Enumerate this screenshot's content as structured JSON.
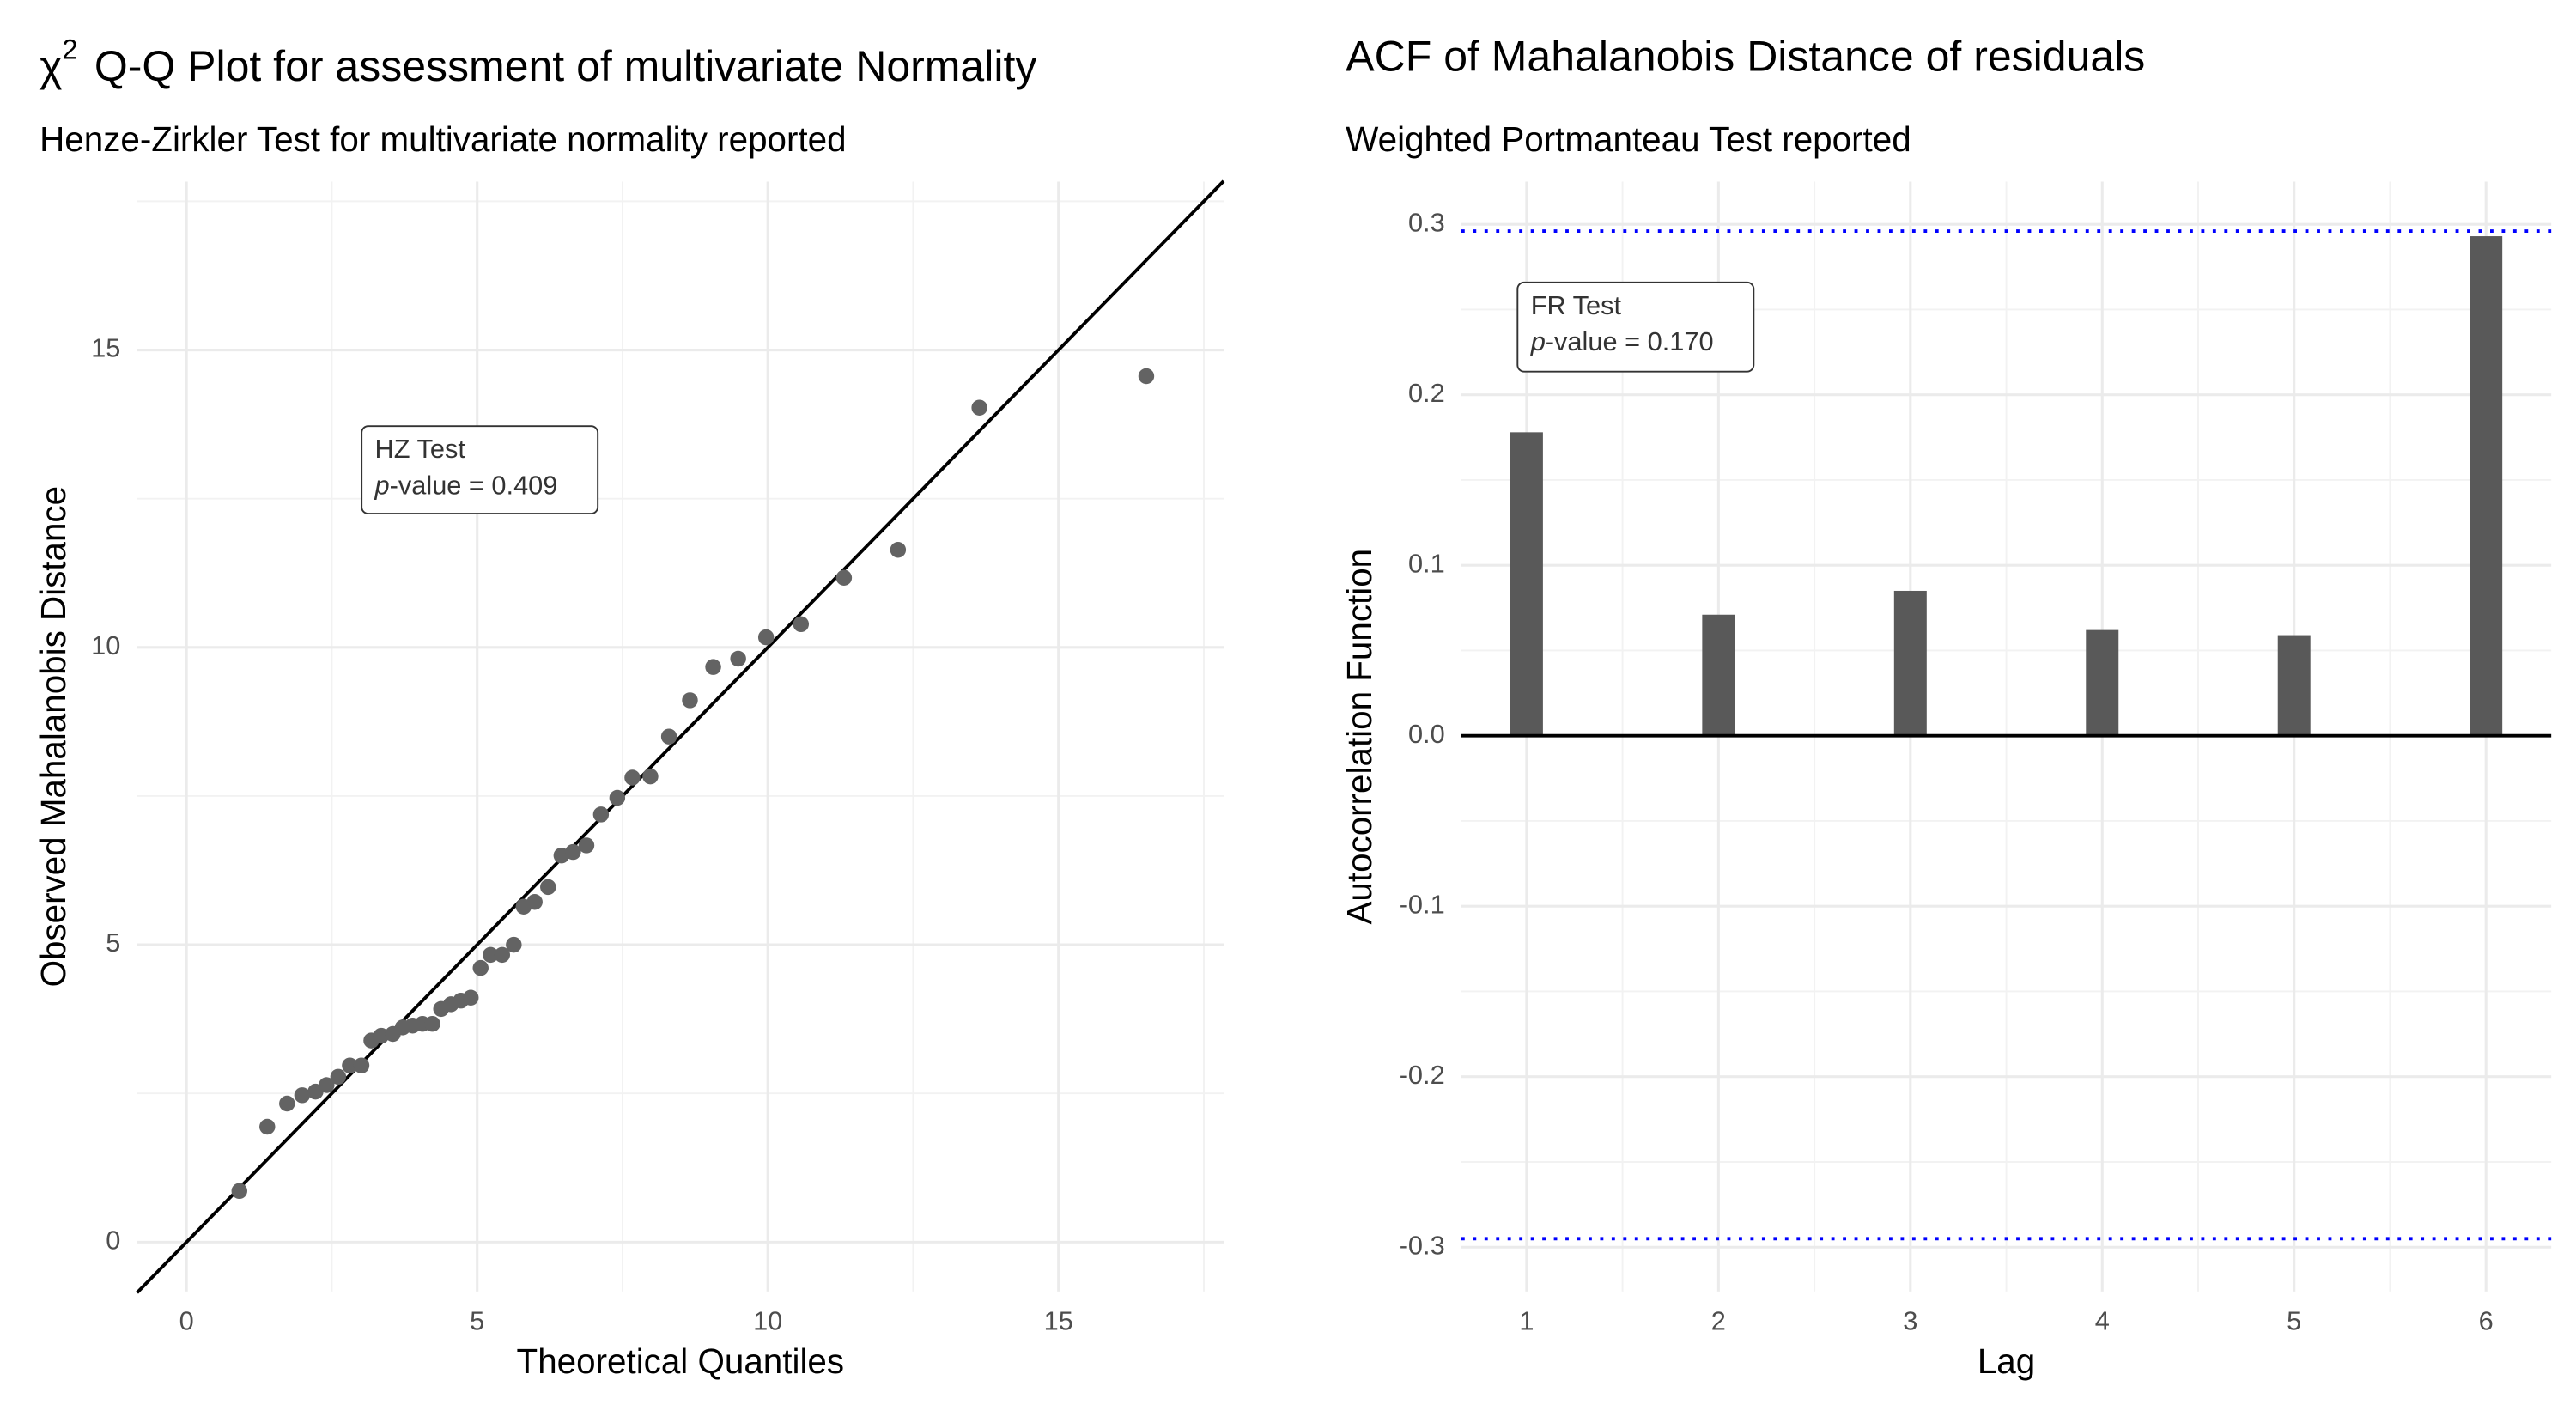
{
  "chart_data": [
    {
      "type": "scatter",
      "title_symbol": "χ",
      "title_superscript": "2",
      "title": "Q-Q Plot for assessment of multivariate Normality",
      "subtitle": "Henze-Zirkler Test for multivariate normality reported",
      "x_label": "Theoretical Quantiles",
      "y_label": "Observed Mahalanobis Distance",
      "annotation": {
        "title": "HZ Test",
        "stat_symbol": "p",
        "stat_text": "-value = 0.409"
      },
      "x": [
        0.91,
        1.39,
        1.73,
        1.99,
        2.22,
        2.41,
        2.61,
        2.81,
        3.01,
        3.18,
        3.35,
        3.55,
        3.72,
        3.89,
        4.06,
        4.23,
        4.38,
        4.55,
        4.72,
        4.89,
        5.06,
        5.23,
        5.43,
        5.63,
        5.8,
        5.99,
        6.22,
        6.45,
        6.65,
        6.88,
        7.13,
        7.41,
        7.67,
        7.98,
        8.3,
        8.66,
        9.06,
        9.49,
        9.97,
        10.57,
        11.31,
        12.24,
        13.64,
        16.51
      ],
      "series": [
        {
          "name": "Observed",
          "color": "#636363",
          "values": [
            0.86,
            1.94,
            2.33,
            2.47,
            2.53,
            2.64,
            2.78,
            2.97,
            2.97,
            3.39,
            3.47,
            3.5,
            3.61,
            3.64,
            3.67,
            3.67,
            3.92,
            4.0,
            4.06,
            4.11,
            4.61,
            4.83,
            4.83,
            5.0,
            5.64,
            5.72,
            5.97,
            6.5,
            6.56,
            6.67,
            7.19,
            7.47,
            7.81,
            7.83,
            8.5,
            9.11,
            9.67,
            9.81,
            10.17,
            10.39,
            11.17,
            11.64,
            14.03,
            14.56
          ]
        }
      ],
      "reference_line": {
        "slope": 1,
        "intercept": 0,
        "color": "#000000"
      },
      "xlim": [
        -0.85,
        17.84
      ],
      "ylim": [
        -0.83,
        17.83
      ],
      "xticks": [
        0,
        5,
        10,
        15
      ],
      "yticks": [
        0,
        5,
        10,
        15
      ],
      "grid": true
    },
    {
      "type": "bar",
      "title": "ACF of Mahalanobis Distance of residuals",
      "subtitle": "Weighted Portmanteau Test reported",
      "x_label": "Lag",
      "y_label": "Autocorrelation Function",
      "annotation": {
        "title": "FR Test",
        "stat_symbol": "p",
        "stat_text": "-value = 0.170"
      },
      "x": [
        1,
        2,
        3,
        4,
        5,
        6
      ],
      "series": [
        {
          "name": "ACF",
          "color": "#595959",
          "values": [
            0.178,
            0.071,
            0.085,
            0.062,
            0.059,
            0.293
          ]
        }
      ],
      "confidence_bounds": [
        -0.295,
        0.296
      ],
      "bound_color": "#0000ff",
      "xlim": [
        0.66,
        6.34
      ],
      "ylim": [
        -0.326,
        0.325
      ],
      "xticks": [
        1,
        2,
        3,
        4,
        5,
        6
      ],
      "yticks": [
        -0.3,
        -0.2,
        -0.1,
        {
          "value": 0,
          "label": "0.0"
        },
        0.1,
        0.2,
        0.3
      ],
      "grid": true
    }
  ]
}
